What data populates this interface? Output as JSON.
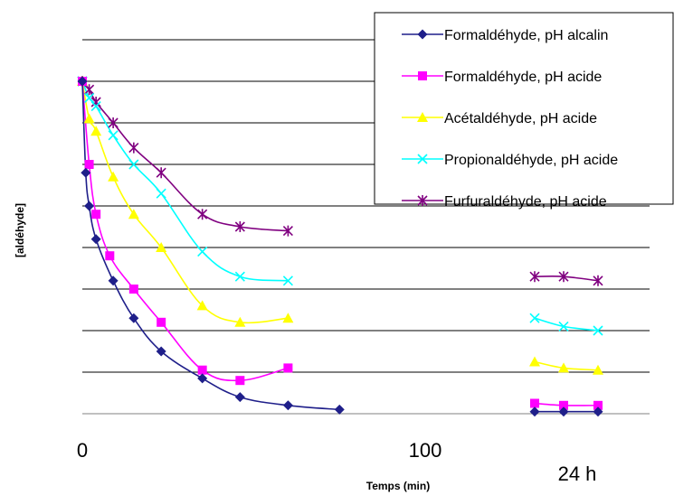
{
  "chart_data": {
    "type": "line",
    "xlabel": "Temps (min)",
    "ylabel": "[aldéhyde]",
    "x_tick_labels": [
      "0",
      "100",
      "24 h"
    ],
    "y_tick_labels": [],
    "grid": "horizontal",
    "legend_position": "top-right",
    "x_unit": "min",
    "x_break_label": "24 h",
    "y_scale": "arbitrary, gridlines 0 to 9",
    "series": [
      {
        "name": "Formaldéhyde, pH alcalin",
        "color": "#1f1f8a",
        "marker": "diamond",
        "x": [
          0,
          1,
          2,
          4,
          9,
          15,
          23,
          35,
          46,
          60,
          75
        ],
        "y": [
          8.0,
          5.8,
          5.0,
          4.2,
          3.2,
          2.3,
          1.5,
          0.85,
          0.4,
          0.2,
          0.1
        ],
        "x_24h": [
          0,
          1,
          2
        ],
        "y_24h": [
          0.05,
          0.05,
          0.05
        ]
      },
      {
        "name": "Formaldéhyde, pH acide",
        "color": "#ff00ff",
        "marker": "square",
        "x": [
          0,
          2,
          4,
          8,
          15,
          23,
          35,
          46,
          60
        ],
        "y": [
          8.0,
          6.0,
          4.8,
          3.8,
          3.0,
          2.2,
          1.05,
          0.8,
          1.1
        ],
        "x_24h": [
          0,
          1,
          2
        ],
        "y_24h": [
          0.25,
          0.2,
          0.2
        ]
      },
      {
        "name": "Acétaldéhyde, pH acide",
        "color": "#ffff00",
        "marker": "triangle",
        "x": [
          0,
          2,
          4,
          9,
          15,
          23,
          35,
          46,
          60
        ],
        "y": [
          8.0,
          7.1,
          6.8,
          5.7,
          4.8,
          4.0,
          2.6,
          2.2,
          2.3
        ],
        "x_24h": [
          0,
          1,
          2
        ],
        "y_24h": [
          1.25,
          1.1,
          1.05
        ]
      },
      {
        "name": "Propionaldéhyde, pH acide",
        "color": "#00ffff",
        "marker": "x",
        "x": [
          0,
          2,
          4,
          9,
          15,
          23,
          35,
          46,
          60
        ],
        "y": [
          8.0,
          7.6,
          7.4,
          6.7,
          6.0,
          5.3,
          3.9,
          3.3,
          3.2
        ],
        "x_24h": [
          0,
          1,
          2
        ],
        "y_24h": [
          2.3,
          2.1,
          2.0
        ]
      },
      {
        "name": "Furfuraldéhyde, pH acide",
        "color": "#800080",
        "marker": "star",
        "x": [
          0,
          2,
          4,
          9,
          15,
          23,
          35,
          46,
          60
        ],
        "y": [
          8.0,
          7.8,
          7.5,
          7.0,
          6.4,
          5.8,
          4.8,
          4.5,
          4.4
        ],
        "x_24h": [
          0,
          1,
          2
        ],
        "y_24h": [
          3.3,
          3.3,
          3.2
        ]
      }
    ]
  }
}
